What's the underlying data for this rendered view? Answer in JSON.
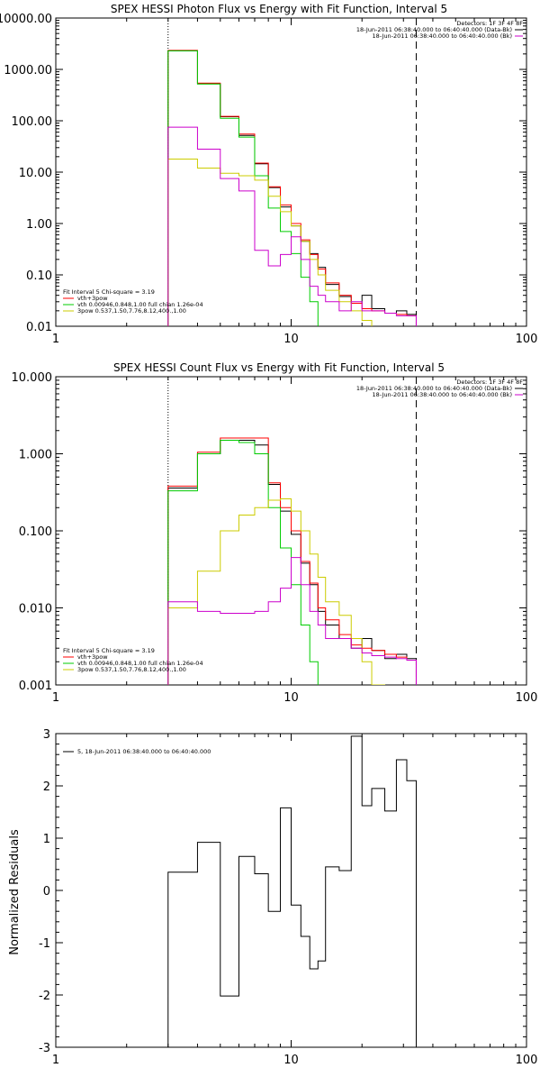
{
  "chart_data": [
    {
      "type": "line",
      "title": "SPEX HESSI Photon Flux vs Energy with Fit Function, Interval 5",
      "xscale": "log",
      "yscale": "log",
      "xlim": [
        1,
        100
      ],
      "ylim": [
        0.01,
        10000
      ],
      "xticks": [
        "1",
        "10",
        "100"
      ],
      "yticks": [
        "0.01",
        "0.10",
        "1.00",
        "10.00",
        "100.00",
        "1000.00",
        "10000.00"
      ],
      "vlines": [
        {
          "x": 3,
          "style": "dotted"
        },
        {
          "x": 34,
          "style": "dashed"
        }
      ],
      "legend_top": {
        "header": "Detectors: 1F 3F 4F 8F",
        "entries": [
          {
            "text": "18-Jun-2011 06:38:40.000 to 06:40:40.000 (Data-Bk)",
            "color": "#000000"
          },
          {
            "text": "18-Jun-2011 06:38:40.000 to 06:40:40.000 (Bk)",
            "color": "#cc00cc"
          }
        ]
      },
      "legend_bottom": {
        "header": "Fit Interval 5   Chi-square = 3.19",
        "entries": [
          {
            "text": "vth+3pow",
            "color": "#ff0000"
          },
          {
            "text": "vth 0.00946,0.848,1.00  full chian 1.26e-04",
            "color": "#00cc00"
          },
          {
            "text": "3pow 0.537,1.50,7.76,8.12,400.,1.00",
            "color": "#cccc00"
          }
        ]
      },
      "bin_edges": [
        3,
        4,
        5,
        6,
        7,
        8,
        9,
        10,
        11,
        12,
        13,
        14,
        16,
        18,
        20,
        22,
        25,
        28,
        31,
        34
      ],
      "series": [
        {
          "color": "#000000",
          "values": [
            2300,
            530,
            120,
            52,
            14.5,
            5.0,
            2.1,
            0.9,
            0.45,
            0.26,
            0.14,
            0.065,
            0.038,
            0.028,
            0.04,
            0.022,
            0.018,
            0.02,
            0.017
          ]
        },
        {
          "color": "#ff0000",
          "values": [
            2350,
            540,
            122,
            55,
            15,
            5.2,
            2.3,
            1.0,
            0.48,
            0.25,
            0.13,
            0.07,
            0.04,
            0.028,
            0.022,
            0.02,
            0.018,
            0.017,
            0.016
          ]
        },
        {
          "color": "#00cc00",
          "values": [
            2300,
            520,
            112,
            48,
            8.5,
            2.0,
            0.7,
            0.26,
            0.09,
            0.03,
            0.008
          ]
        },
        {
          "color": "#cccc00",
          "values": [
            18,
            12,
            9.5,
            8.5,
            7.0,
            3.4,
            1.7,
            0.9,
            0.45,
            0.2,
            0.1,
            0.05,
            0.03,
            0.02,
            0.013,
            0.009
          ]
        },
        {
          "color": "#cc00cc",
          "values": [
            75,
            28,
            7.5,
            4.3,
            0.3,
            0.15,
            0.25,
            0.55,
            0.2,
            0.06,
            0.04,
            0.03,
            0.02,
            0.03,
            0.02,
            0.02,
            0.018,
            0.016,
            0.016
          ]
        }
      ]
    },
    {
      "type": "line",
      "title": "SPEX HESSI Count Flux vs Energy with Fit Function, Interval 5",
      "xscale": "log",
      "yscale": "log",
      "xlim": [
        1,
        100
      ],
      "ylim": [
        0.001,
        10
      ],
      "xticks": [
        "1",
        "10",
        "100"
      ],
      "yticks": [
        "0.001",
        "0.010",
        "0.100",
        "1.000",
        "10.000"
      ],
      "vlines": [
        {
          "x": 3,
          "style": "dotted"
        },
        {
          "x": 34,
          "style": "dashed"
        }
      ],
      "legend_top": {
        "header": "Detectors: 1F 3F 4F 8F",
        "entries": [
          {
            "text": "18-Jun-2011 06:38:40.000 to 06:40:40.000 (Data-Bk)",
            "color": "#000000"
          },
          {
            "text": "18-Jun-2011 06:38:40.000 to 06:40:40.000 (Bk)",
            "color": "#cc00cc"
          }
        ]
      },
      "legend_bottom": {
        "header": "Fit Interval 5   Chi-square = 3.19",
        "entries": [
          {
            "text": "vth+3pow",
            "color": "#ff0000"
          },
          {
            "text": "vth 0.00946,0.848,1.00  full chian 1.26e-04",
            "color": "#00cc00"
          },
          {
            "text": "3pow 0.537,1.50,7.76,8.12,400.,1.00",
            "color": "#cccc00"
          }
        ]
      },
      "bin_edges": [
        3,
        4,
        5,
        6,
        7,
        8,
        9,
        10,
        11,
        12,
        13,
        14,
        16,
        18,
        20,
        22,
        25,
        28,
        31,
        34
      ],
      "series": [
        {
          "color": "#000000",
          "values": [
            0.36,
            1.0,
            1.5,
            1.5,
            1.3,
            0.4,
            0.18,
            0.09,
            0.038,
            0.02,
            0.009,
            0.006,
            0.004,
            0.003,
            0.004,
            0.0028,
            0.0022,
            0.0025,
            0.0022
          ]
        },
        {
          "color": "#ff0000",
          "values": [
            0.38,
            1.05,
            1.6,
            1.6,
            1.6,
            0.42,
            0.2,
            0.1,
            0.04,
            0.021,
            0.01,
            0.007,
            0.0045,
            0.0033,
            0.003,
            0.0028,
            0.0025,
            0.0023,
            0.0021
          ]
        },
        {
          "color": "#00cc00",
          "values": [
            0.33,
            1.0,
            1.5,
            1.4,
            1.0,
            0.2,
            0.06,
            0.02,
            0.006,
            0.002,
            0.0005
          ]
        },
        {
          "color": "#cccc00",
          "values": [
            0.01,
            0.03,
            0.1,
            0.16,
            0.2,
            0.25,
            0.26,
            0.18,
            0.1,
            0.05,
            0.025,
            0.012,
            0.008,
            0.004,
            0.002,
            0.001
          ]
        },
        {
          "color": "#cc00cc",
          "values": [
            0.012,
            0.009,
            0.0085,
            0.0085,
            0.009,
            0.012,
            0.018,
            0.045,
            0.02,
            0.009,
            0.006,
            0.004,
            0.004,
            0.003,
            0.0026,
            0.0024,
            0.0023,
            0.0022,
            0.0021
          ]
        }
      ]
    },
    {
      "type": "line",
      "xscale": "log",
      "xlim": [
        1,
        100
      ],
      "ylim": [
        -3,
        3
      ],
      "xticks": [
        "1",
        "10",
        "100"
      ],
      "yticks": [
        "-3",
        "-2",
        "-1",
        "0",
        "1",
        "2",
        "3"
      ],
      "ylabel": "Normalized Residuals",
      "legend": {
        "text": "5, 18-Jun-2011 06:38:40.000 to 06:40:40.000",
        "color": "#000000"
      },
      "bin_edges": [
        3,
        4,
        5,
        6,
        7,
        8,
        9,
        10,
        11,
        12,
        13,
        14,
        16,
        18,
        20,
        22,
        25,
        28,
        31,
        34
      ],
      "series": [
        {
          "color": "#000000",
          "values": [
            0.35,
            0.92,
            -2.02,
            0.65,
            0.32,
            -0.4,
            1.58,
            -0.28,
            -0.88,
            -1.5,
            -1.35,
            0.45,
            0.38,
            2.95,
            1.62,
            1.95,
            1.52,
            2.5,
            2.1
          ]
        }
      ]
    }
  ]
}
